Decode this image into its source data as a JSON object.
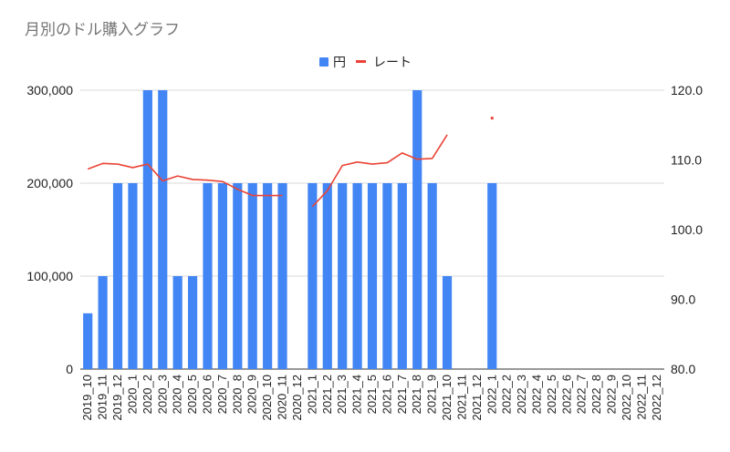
{
  "chart_data": {
    "type": "bar",
    "title": "月別のドル購入グラフ",
    "categories": [
      "2019_10",
      "2019_11",
      "2019_12",
      "2020_1",
      "2020_2",
      "2020_3",
      "2020_4",
      "2020_5",
      "2020_6",
      "2020_7",
      "2020_8",
      "2020_9",
      "2020_10",
      "2020_11",
      "2020_12",
      "2021_1",
      "2021_2",
      "2021_3",
      "2021_4",
      "2021_5",
      "2021_6",
      "2021_7",
      "2021_8",
      "2021_9",
      "2021_10",
      "2021_11",
      "2021_12",
      "2022_1",
      "2022_2",
      "2022_3",
      "2022_4",
      "2022_5",
      "2022_6",
      "2022_7",
      "2022_8",
      "2022_9",
      "2022_10",
      "2022_11",
      "2022_12"
    ],
    "series": [
      {
        "name": "円",
        "type": "bar",
        "axis": "left",
        "color": "#4285f4",
        "values": [
          60000,
          100000,
          200000,
          200000,
          300000,
          300000,
          100000,
          100000,
          200000,
          200000,
          200000,
          200000,
          200000,
          200000,
          null,
          200000,
          200000,
          200000,
          200000,
          200000,
          200000,
          200000,
          300000,
          200000,
          100000,
          null,
          null,
          200000,
          null,
          null,
          null,
          null,
          null,
          null,
          null,
          null,
          null,
          null,
          null
        ]
      },
      {
        "name": "レート",
        "type": "line",
        "axis": "right",
        "color": "#ea4335",
        "values": [
          108.7,
          109.5,
          109.4,
          108.9,
          109.4,
          107.0,
          107.7,
          107.2,
          107.1,
          106.9,
          105.8,
          104.9,
          104.9,
          104.9,
          null,
          103.3,
          105.6,
          109.2,
          109.7,
          109.4,
          109.6,
          111.0,
          110.1,
          110.2,
          113.6,
          null,
          null,
          116.0,
          null,
          null,
          null,
          null,
          null,
          null,
          null,
          null,
          null,
          null,
          null
        ]
      }
    ],
    "y_left": {
      "ticks": [
        "0",
        "100,000",
        "200,000",
        "300,000"
      ],
      "ylim": [
        0,
        300000
      ]
    },
    "y_right": {
      "ticks": [
        "80.0",
        "90.0",
        "100.0",
        "110.0",
        "120.0"
      ],
      "ylim": [
        80,
        120
      ]
    },
    "legend_position": "top",
    "grid": true
  }
}
